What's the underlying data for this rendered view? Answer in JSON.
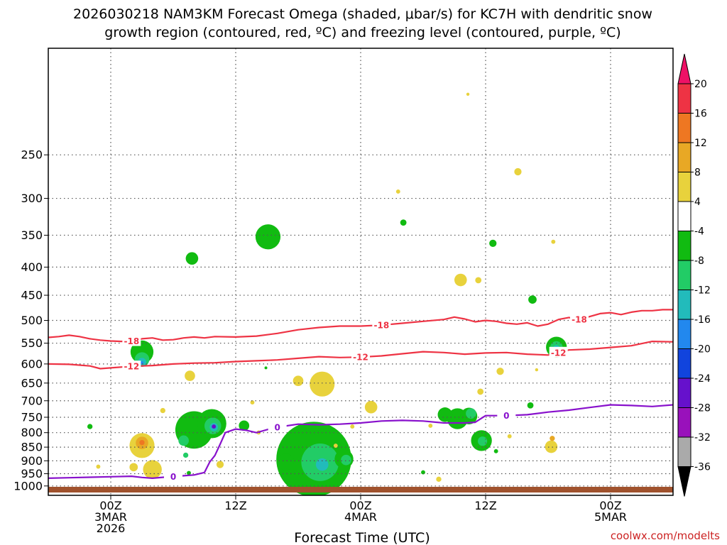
{
  "chart_data": {
    "type": "heatmap",
    "title_line1": "2026030218 NAM3KM Forecast Omega (shaded, μbar/s) for KC7H with dendritic snow",
    "title_line2": "growth region (contoured, red, ºC) and freezing level (contoured, purple, ºC)",
    "xlabel": "Forecast Time (UTC)",
    "credit": "coolwx.com/modelts",
    "y_axis": {
      "scale": "log-pressure",
      "inverted": true,
      "range_hpa": [
        1040,
        160
      ],
      "ticks": [
        "250",
        "300",
        "350",
        "400",
        "450",
        "500",
        "550",
        "600",
        "650",
        "700",
        "750",
        "800",
        "850",
        "900",
        "950",
        "1000"
      ],
      "grid": "dotted"
    },
    "x_axis": {
      "range_hours": [
        -6,
        54
      ],
      "ticks": [
        {
          "hour": 0,
          "lines": [
            "00Z",
            "3MAR",
            "2026"
          ]
        },
        {
          "hour": 12,
          "lines": [
            "12Z"
          ]
        },
        {
          "hour": 24,
          "lines": [
            "00Z",
            "4MAR"
          ]
        },
        {
          "hour": 36,
          "lines": [
            "12Z"
          ]
        },
        {
          "hour": 48,
          "lines": [
            "00Z",
            "5MAR"
          ]
        }
      ],
      "grid": "dotted"
    },
    "colorbar": {
      "labels": [
        "20",
        "16",
        "12",
        "8",
        "4",
        "-4",
        "-8",
        "-12",
        "-16",
        "-20",
        "-24",
        "-28",
        "-32",
        "-36"
      ],
      "colors": [
        "#ee1166",
        "#ee3344",
        "#ee7722",
        "#e8a825",
        "#e8d23c",
        "#ffffff",
        "#11bb11",
        "#22cc66",
        "#22bbbb",
        "#2288ee",
        "#1144dd",
        "#6611cc",
        "#9911bb",
        "#aaaaaa",
        "#000000"
      ]
    },
    "isotherms": [
      {
        "label": "-18",
        "color": "#ee3344",
        "points": [
          [
            -6,
            537
          ],
          [
            -5,
            535
          ],
          [
            -4,
            532
          ],
          [
            -3,
            535
          ],
          [
            -2,
            540
          ],
          [
            -1,
            543
          ],
          [
            0,
            545
          ],
          [
            1,
            546
          ],
          [
            2,
            545
          ],
          [
            3,
            540
          ],
          [
            4,
            538
          ],
          [
            5,
            543
          ],
          [
            6,
            542
          ],
          [
            7,
            538
          ],
          [
            8,
            536
          ],
          [
            9,
            538
          ],
          [
            10,
            535
          ],
          [
            12,
            536
          ],
          [
            14,
            534
          ],
          [
            16,
            528
          ],
          [
            18,
            520
          ],
          [
            20,
            515
          ],
          [
            22,
            512
          ],
          [
            24,
            512
          ],
          [
            26,
            510
          ],
          [
            28,
            506
          ],
          [
            30,
            502
          ],
          [
            32,
            498
          ],
          [
            33,
            493
          ],
          [
            34,
            497
          ],
          [
            35,
            503
          ],
          [
            36,
            500
          ],
          [
            37,
            502
          ],
          [
            38,
            506
          ],
          [
            39,
            508
          ],
          [
            40,
            505
          ],
          [
            41,
            512
          ],
          [
            42,
            508
          ],
          [
            43,
            498
          ],
          [
            44,
            494
          ],
          [
            45,
            498
          ],
          [
            46,
            492
          ],
          [
            47,
            486
          ],
          [
            48,
            484
          ],
          [
            49,
            488
          ],
          [
            50,
            483
          ],
          [
            51,
            480
          ],
          [
            52,
            480
          ],
          [
            53,
            478
          ],
          [
            54,
            478
          ]
        ]
      },
      {
        "label": "-12",
        "color": "#ee3344",
        "points": [
          [
            -6,
            600
          ],
          [
            -4,
            601
          ],
          [
            -2,
            605
          ],
          [
            -1,
            612
          ],
          [
            0,
            610
          ],
          [
            2,
            606
          ],
          [
            4,
            604
          ],
          [
            6,
            600
          ],
          [
            8,
            598
          ],
          [
            10,
            597
          ],
          [
            12,
            594
          ],
          [
            14,
            592
          ],
          [
            16,
            590
          ],
          [
            18,
            586
          ],
          [
            20,
            582
          ],
          [
            22,
            584
          ],
          [
            24,
            583
          ],
          [
            26,
            580
          ],
          [
            28,
            575
          ],
          [
            30,
            570
          ],
          [
            32,
            572
          ],
          [
            34,
            576
          ],
          [
            36,
            573
          ],
          [
            38,
            572
          ],
          [
            40,
            576
          ],
          [
            42,
            578
          ],
          [
            43,
            572
          ],
          [
            44,
            566
          ],
          [
            46,
            564
          ],
          [
            48,
            560
          ],
          [
            50,
            556
          ],
          [
            52,
            546
          ],
          [
            54,
            547
          ]
        ]
      },
      {
        "label": "0",
        "color": "#8811cc",
        "points": [
          [
            -6,
            968
          ],
          [
            -4,
            966
          ],
          [
            -2,
            964
          ],
          [
            0,
            962
          ],
          [
            2,
            960
          ],
          [
            3,
            965
          ],
          [
            4,
            968
          ],
          [
            6,
            961
          ],
          [
            7,
            958
          ],
          [
            8,
            955
          ],
          [
            9,
            945
          ],
          [
            9.5,
            905
          ],
          [
            10,
            880
          ],
          [
            10.5,
            840
          ],
          [
            11,
            800
          ],
          [
            12,
            788
          ],
          [
            13,
            792
          ],
          [
            14,
            800
          ],
          [
            15,
            790
          ],
          [
            16,
            782
          ],
          [
            18,
            772
          ],
          [
            20,
            774
          ],
          [
            22,
            772
          ],
          [
            24,
            768
          ],
          [
            26,
            762
          ],
          [
            28,
            760
          ],
          [
            30,
            762
          ],
          [
            32,
            768
          ],
          [
            34,
            768
          ],
          [
            35,
            766
          ],
          [
            36,
            745
          ],
          [
            38,
            745
          ],
          [
            40,
            742
          ],
          [
            42,
            734
          ],
          [
            44,
            728
          ],
          [
            46,
            720
          ],
          [
            48,
            712
          ],
          [
            50,
            714
          ],
          [
            52,
            717
          ],
          [
            54,
            712
          ]
        ]
      }
    ],
    "omega_blobs": [
      {
        "c": "#11bb11",
        "cx": 3,
        "p1": 465,
        "p2": 700,
        "w": 1.1
      },
      {
        "c": "#22cc66",
        "cx": 3,
        "p1": 510,
        "p2": 680,
        "w": 0.7
      },
      {
        "c": "#22bbbb",
        "cx": 3,
        "p1": 545,
        "p2": 650,
        "w": 0.4
      },
      {
        "c": "#2288ee",
        "cx": 3,
        "p1": 575,
        "p2": 620,
        "w": 0.15
      },
      {
        "c": "#e8d23c",
        "cx": 3,
        "p1": 720,
        "p2": 990,
        "w": 1.2
      },
      {
        "c": "#e8a825",
        "cx": 3,
        "p1": 750,
        "p2": 930,
        "w": 0.6
      },
      {
        "c": "#ee7722",
        "cx": 3,
        "p1": 790,
        "p2": 880,
        "w": 0.25
      },
      {
        "c": "#e8d23c",
        "cx": 4,
        "p1": 880,
        "p2": 990,
        "w": 0.9
      },
      {
        "c": "#e8d23c",
        "cx": 2.2,
        "p1": 890,
        "p2": 960,
        "w": 0.4
      },
      {
        "c": "#e8d23c",
        "cx": -1.2,
        "p1": 900,
        "p2": 945,
        "w": 0.2
      },
      {
        "c": "#11bb11",
        "cx": -2,
        "p1": 760,
        "p2": 800,
        "w": 0.25
      },
      {
        "c": "#e8d23c",
        "cx": 5,
        "p1": 700,
        "p2": 760,
        "w": 0.25
      },
      {
        "c": "#e8d23c",
        "cx": 5.7,
        "p1": 930,
        "p2": 990,
        "w": 0.25
      },
      {
        "c": "#e8d23c",
        "cx": 7.6,
        "p1": 560,
        "p2": 710,
        "w": 0.5
      },
      {
        "c": "#11bb11",
        "cx": 8,
        "p1": 680,
        "p2": 920,
        "w": 1.8
      },
      {
        "c": "#22cc66",
        "cx": 7,
        "p1": 760,
        "p2": 900,
        "w": 0.5
      },
      {
        "c": "#22cc66",
        "cx": 7.2,
        "p1": 840,
        "p2": 920,
        "w": 0.25
      },
      {
        "c": "#11bb11",
        "cx": 7.5,
        "p1": 920,
        "p2": 975,
        "w": 0.2
      },
      {
        "c": "#11bb11",
        "cx": 7.8,
        "p1": 320,
        "p2": 465,
        "w": 0.6
      },
      {
        "c": "#11bb11",
        "cx": 9.7,
        "p1": 690,
        "p2": 860,
        "w": 1.4
      },
      {
        "c": "#22cc66",
        "cx": 9.8,
        "p1": 720,
        "p2": 840,
        "w": 0.8
      },
      {
        "c": "#22bbbb",
        "cx": 9.9,
        "p1": 745,
        "p2": 820,
        "w": 0.4
      },
      {
        "c": "#6611cc",
        "cx": 9.9,
        "p1": 760,
        "p2": 800,
        "w": 0.2
      },
      {
        "c": "#e8d23c",
        "cx": 10.5,
        "p1": 870,
        "p2": 960,
        "w": 0.35
      },
      {
        "c": "#11bb11",
        "cx": 12.8,
        "p1": 710,
        "p2": 850,
        "w": 0.5
      },
      {
        "c": "#e8d23c",
        "cx": 13.6,
        "p1": 690,
        "p2": 720,
        "w": 0.2
      },
      {
        "c": "#e8d23c",
        "cx": 14.2,
        "p1": 770,
        "p2": 830,
        "w": 0.2
      },
      {
        "c": "#11bb11",
        "cx": 15.1,
        "p1": 270,
        "p2": 460,
        "w": 1.2
      },
      {
        "c": "#11bb11",
        "cx": 14.9,
        "p1": 595,
        "p2": 625,
        "w": 0.1
      },
      {
        "c": "#11bb11",
        "cx": 19.5,
        "p1": 820,
        "p2": 975,
        "w": 3.6
      },
      {
        "c": "#22cc66",
        "cx": 20.1,
        "p1": 850,
        "p2": 965,
        "w": 1.8
      },
      {
        "c": "#22bbbb",
        "cx": 20.3,
        "p1": 880,
        "p2": 950,
        "w": 0.6
      },
      {
        "c": "#11bb11",
        "cx": 16.8,
        "p1": 860,
        "p2": 950,
        "w": 0.8
      },
      {
        "c": "#e8d23c",
        "cx": 18,
        "p1": 610,
        "p2": 680,
        "w": 0.5
      },
      {
        "c": "#e8d23c",
        "cx": 20.3,
        "p1": 600,
        "p2": 710,
        "w": 1.2
      },
      {
        "c": "#11bb11",
        "cx": 22.4,
        "p1": 840,
        "p2": 950,
        "w": 0.9
      },
      {
        "c": "#22cc66",
        "cx": 22.6,
        "p1": 870,
        "p2": 925,
        "w": 0.5
      },
      {
        "c": "#e8d23c",
        "cx": 21.6,
        "p1": 830,
        "p2": 860,
        "w": 0.2
      },
      {
        "c": "#e8d23c",
        "cx": 23.2,
        "p1": 760,
        "p2": 800,
        "w": 0.2
      },
      {
        "c": "#e8d23c",
        "cx": 25,
        "p1": 680,
        "p2": 760,
        "w": 0.6
      },
      {
        "c": "#e8d23c",
        "cx": 27.6,
        "p1": 250,
        "p2": 340,
        "w": 0.2
      },
      {
        "c": "#11bb11",
        "cx": 28.1,
        "p1": 290,
        "p2": 380,
        "w": 0.3
      },
      {
        "c": "#11bb11",
        "cx": 30,
        "p1": 915,
        "p2": 975,
        "w": 0.2
      },
      {
        "c": "#e8d23c",
        "cx": 30.7,
        "p1": 755,
        "p2": 800,
        "w": 0.2
      },
      {
        "c": "#e8d23c",
        "cx": 31.5,
        "p1": 950,
        "p2": 995,
        "w": 0.25
      },
      {
        "c": "#11bb11",
        "cx": 33.3,
        "p1": 670,
        "p2": 850,
        "w": 1.0
      },
      {
        "c": "#11bb11",
        "cx": 34.4,
        "p1": 655,
        "p2": 850,
        "w": 0.8
      },
      {
        "c": "#22cc66",
        "cx": 34.6,
        "p1": 690,
        "p2": 790,
        "w": 0.5
      },
      {
        "c": "#11bb11",
        "cx": 32.1,
        "p1": 640,
        "p2": 860,
        "w": 0.7
      },
      {
        "c": "#e8d23c",
        "cx": 33.6,
        "p1": 360,
        "p2": 495,
        "w": 0.6
      },
      {
        "c": "#e8d23c",
        "cx": 35.3,
        "p1": 380,
        "p2": 470,
        "w": 0.3
      },
      {
        "c": "#e8d23c",
        "cx": 35.5,
        "p1": 635,
        "p2": 715,
        "w": 0.3
      },
      {
        "c": "#11bb11",
        "cx": 36.7,
        "p1": 345,
        "p2": 380,
        "w": 0.35
      },
      {
        "c": "#e8d23c",
        "cx": 34.3,
        "p1": 190,
        "p2": 198,
        "w": 0.15
      },
      {
        "c": "#11bb11",
        "cx": 37,
        "p1": 840,
        "p2": 890,
        "w": 0.2
      },
      {
        "c": "#11bb11",
        "cx": 35.6,
        "p1": 760,
        "p2": 900,
        "w": 1.0
      },
      {
        "c": "#22cc66",
        "cx": 35.7,
        "p1": 790,
        "p2": 870,
        "w": 0.45
      },
      {
        "c": "#e8d23c",
        "cx": 39.1,
        "p1": 240,
        "p2": 300,
        "w": 0.35
      },
      {
        "c": "#e8d23c",
        "cx": 37.4,
        "p1": 555,
        "p2": 690,
        "w": 0.35
      },
      {
        "c": "#e8d23c",
        "cx": 38.3,
        "p1": 795,
        "p2": 830,
        "w": 0.2
      },
      {
        "c": "#11bb11",
        "cx": 40.5,
        "p1": 420,
        "p2": 500,
        "w": 0.4
      },
      {
        "c": "#11bb11",
        "cx": 40.3,
        "p1": 670,
        "p2": 760,
        "w": 0.3
      },
      {
        "c": "#e8d23c",
        "cx": 40.9,
        "p1": 600,
        "p2": 630,
        "w": 0.15
      },
      {
        "c": "#11bb11",
        "cx": 42.8,
        "p1": 460,
        "p2": 680,
        "w": 1.0
      },
      {
        "c": "#22cc66",
        "cx": 42.8,
        "p1": 490,
        "p2": 640,
        "w": 0.6
      },
      {
        "c": "#22bbbb",
        "cx": 42.8,
        "p1": 520,
        "p2": 610,
        "w": 0.35
      },
      {
        "c": "#2288ee",
        "cx": 42.8,
        "p1": 545,
        "p2": 590,
        "w": 0.15
      },
      {
        "c": "#e8d23c",
        "cx": 42.3,
        "p1": 750,
        "p2": 960,
        "w": 0.6
      },
      {
        "c": "#e8a825",
        "cx": 42.4,
        "p1": 790,
        "p2": 850,
        "w": 0.25
      },
      {
        "c": "#e8d23c",
        "cx": 42.5,
        "p1": 345,
        "p2": 375,
        "w": 0.2
      }
    ]
  }
}
